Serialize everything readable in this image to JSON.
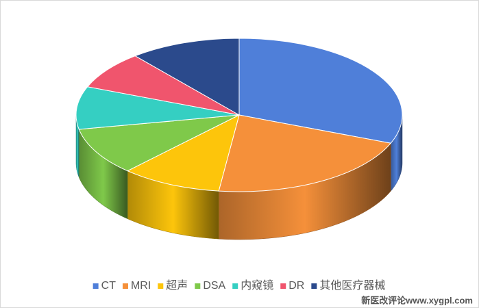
{
  "chart_data": {
    "type": "pie3d",
    "categories": [
      "CT",
      "MRI",
      "超声",
      "DSA",
      "内窥镜",
      "DR",
      "其他医疗器械"
    ],
    "values": [
      31,
      21,
      10,
      10,
      9,
      8,
      11
    ],
    "colors": [
      "#4f7fd9",
      "#f5903a",
      "#fdc50b",
      "#7fc94a",
      "#35cfc2",
      "#f0556d",
      "#2b4a8c"
    ],
    "legend": "bottom",
    "watermark": "新医改评论www.xygpl.com"
  }
}
